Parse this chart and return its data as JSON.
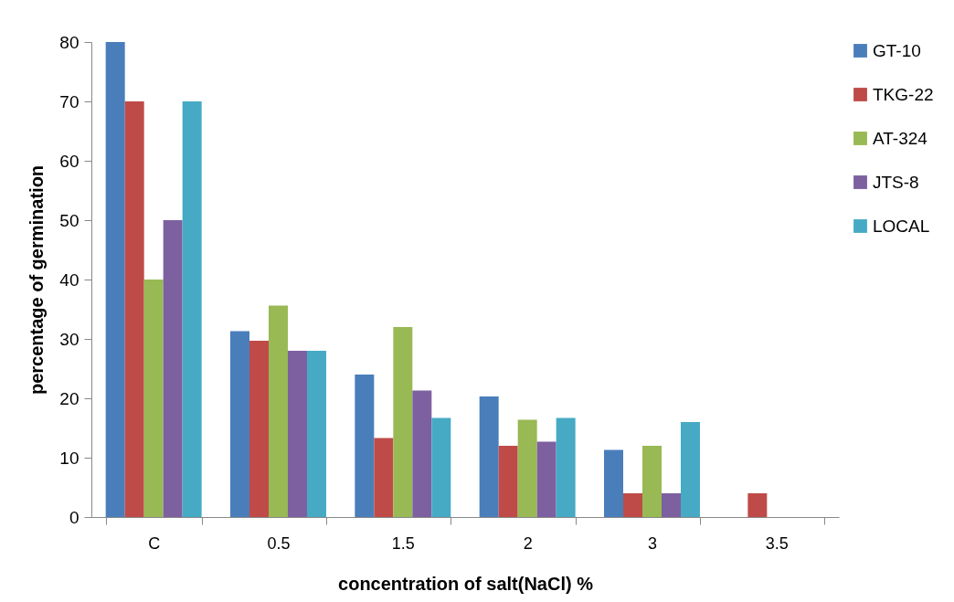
{
  "chart_data": {
    "type": "bar",
    "xlabel": "concentration of salt(NaCl) %",
    "ylabel": "percentage of germination",
    "categories": [
      "C",
      "0.5",
      "1.5",
      "2",
      "3",
      "3.5"
    ],
    "series": [
      {
        "name": "GT-10",
        "color": "#4a7ebb",
        "values": [
          80,
          31.3,
          24,
          20.3,
          11.3,
          0
        ]
      },
      {
        "name": "TKG-22",
        "color": "#be4b48",
        "values": [
          70,
          29.7,
          13.3,
          12,
          4,
          4
        ]
      },
      {
        "name": "AT-324",
        "color": "#98b954",
        "values": [
          40,
          35.6,
          32,
          16.4,
          12,
          0
        ]
      },
      {
        "name": "JTS-8",
        "color": "#7d60a0",
        "values": [
          50,
          28,
          21.3,
          12.7,
          4,
          0
        ]
      },
      {
        "name": "LOCAL",
        "color": "#46aac5",
        "values": [
          70,
          28,
          16.7,
          16.7,
          16,
          0
        ]
      }
    ],
    "ylim": [
      0,
      80
    ],
    "yticks": [
      0,
      10,
      20,
      30,
      40,
      50,
      60,
      70,
      80
    ],
    "grid": false,
    "legend": "right"
  }
}
